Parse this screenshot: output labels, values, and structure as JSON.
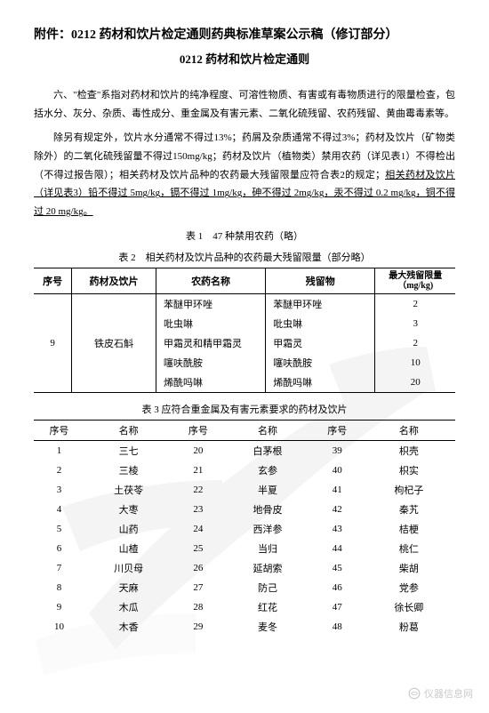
{
  "title_line1": "附件：0212 药材和饮片检定通则药典标准草案公示稿（修订部分）",
  "title_line2": "0212 药材和饮片检定通则",
  "para1": "六、\"检查\"系指对药材和饮片的纯净程度、可溶性物质、有害或有毒物质进行的限量检查，包括水分、灰分、杂质、毒性成分、重金属及有害元素、二氧化硫残留、农药残留、黄曲霉毒素等。",
  "para2_a": "除另有规定外，饮片水分通常不得过13%；药屑及杂质通常不得过3%；药材及饮片（矿物类除外）的二氧化硫残留量不得过150mg/kg；药材及饮片（植物类）禁用农药（详见表1）不得检出（不得过报告限）；相关药材及饮片品种的农药最大残留限量应符合表2的规定；",
  "para2_b": "相关药材及饮片（详见表3）铅不得过 5mg/kg，镉不得过 1mg/kg，砷不得过 2mg/kg，汞不得过 0.2 mg/kg，铜不得过 20 mg/kg。",
  "caption_t1": "表 1　47 种禁用农药（略）",
  "caption_t2": "表 2　相关药材及饮片品种的农药最大残留限量（部分略）",
  "caption_t3": "表 3 应符合重金属及有害元素要求的药材及饮片",
  "t2": {
    "headers": [
      "序号",
      "药材及饮片",
      "农药名称",
      "残留物",
      "最大残留限量（mg/kg)"
    ],
    "seq": "9",
    "material": "铁皮石斛",
    "rows": [
      {
        "name": "苯醚甲环唑",
        "residue": "苯醚甲环唑",
        "limit": "2"
      },
      {
        "name": "吡虫啉",
        "residue": "吡虫啉",
        "limit": "3"
      },
      {
        "name": "甲霜灵和精甲霜灵",
        "residue": "甲霜灵",
        "limit": "2"
      },
      {
        "name": "噻呋酰胺",
        "residue": "噻呋酰胺",
        "limit": "10"
      },
      {
        "name": "烯酰吗啉",
        "residue": "烯酰吗啉",
        "limit": "20"
      }
    ]
  },
  "t3": {
    "headers": [
      "序号",
      "名称",
      "序号",
      "名称",
      "序号",
      "名称"
    ],
    "rows": [
      [
        "1",
        "三七",
        "20",
        "白茅根",
        "39",
        "枳壳"
      ],
      [
        "2",
        "三棱",
        "21",
        "玄参",
        "40",
        "枳实"
      ],
      [
        "3",
        "土茯苓",
        "22",
        "半夏",
        "41",
        "枸杞子"
      ],
      [
        "4",
        "大枣",
        "23",
        "地骨皮",
        "42",
        "秦艽"
      ],
      [
        "5",
        "山药",
        "24",
        "西洋参",
        "43",
        "桔梗"
      ],
      [
        "6",
        "山楂",
        "25",
        "当归",
        "44",
        "桃仁"
      ],
      [
        "7",
        "川贝母",
        "26",
        "延胡索",
        "45",
        "柴胡"
      ],
      [
        "8",
        "天麻",
        "27",
        "防己",
        "46",
        "党参"
      ],
      [
        "9",
        "木瓜",
        "28",
        "红花",
        "47",
        "徐长卿"
      ],
      [
        "10",
        "木香",
        "29",
        "麦冬",
        "48",
        "粉葛"
      ]
    ]
  },
  "footer_text": "仪器信息网"
}
